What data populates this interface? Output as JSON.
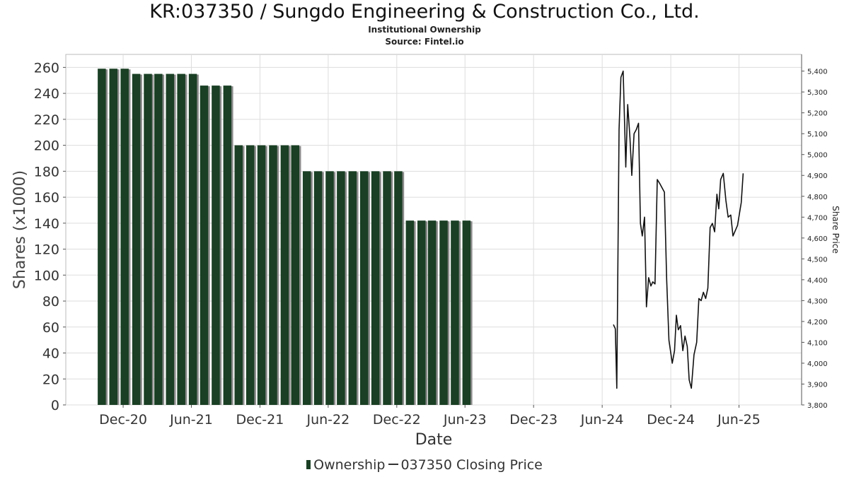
{
  "header": {
    "title": "KR:037350 / Sungdo Engineering & Construction Co., Ltd.",
    "subtitle": "Institutional Ownership",
    "source": "Source: Fintel.io"
  },
  "legend": {
    "ownership_label": "Ownership",
    "price_label": "037350 Closing Price"
  },
  "colors": {
    "bar": "#1a3f24",
    "bar_shadow": "#8a8a8a",
    "line": "#111111",
    "grid": "#dddddd"
  },
  "chart_data": {
    "type": "bar",
    "title": "KR:037350 / Sungdo Engineering & Construction Co., Ltd.",
    "subtitle": "Institutional Ownership",
    "xlabel": "Date",
    "ylabel": "Shares (x1000)",
    "y2label": "Share Price",
    "x_range": [
      "2020-07-01",
      "2025-11-15"
    ],
    "ylim": [
      0,
      270
    ],
    "y2lim": [
      3800,
      5480
    ],
    "y_ticks": [
      0,
      20,
      40,
      60,
      80,
      100,
      120,
      140,
      160,
      180,
      200,
      220,
      240,
      260
    ],
    "y2_ticks": [
      3800,
      3900,
      4000,
      4100,
      4200,
      4300,
      4400,
      4500,
      4600,
      4700,
      4800,
      4900,
      5000,
      5100,
      5200,
      5300,
      5400
    ],
    "y2_tick_labels": [
      "3,800",
      "3,900",
      "4,000",
      "4,100",
      "4,200",
      "4,300",
      "4,400",
      "4,500",
      "4,600",
      "4,700",
      "4,800",
      "4,900",
      "5,000",
      "5,100",
      "5,200",
      "5,300",
      "5,400"
    ],
    "x_ticks": [
      {
        "date": "2020-12-01",
        "label": "Dec-20"
      },
      {
        "date": "2021-06-01",
        "label": "Jun-21"
      },
      {
        "date": "2021-12-01",
        "label": "Dec-21"
      },
      {
        "date": "2022-06-01",
        "label": "Jun-22"
      },
      {
        "date": "2022-12-01",
        "label": "Dec-22"
      },
      {
        "date": "2023-06-01",
        "label": "Jun-23"
      },
      {
        "date": "2023-12-01",
        "label": "Dec-23"
      },
      {
        "date": "2024-06-01",
        "label": "Jun-24"
      },
      {
        "date": "2024-12-01",
        "label": "Dec-24"
      },
      {
        "date": "2025-06-01",
        "label": "Jun-25"
      }
    ],
    "grid": true,
    "legend_position": "bottom",
    "series": [
      {
        "name": "Ownership",
        "type": "bar",
        "axis": "left",
        "points": [
          [
            "2020-10-05",
            259
          ],
          [
            "2020-11-05",
            259
          ],
          [
            "2020-12-05",
            259
          ],
          [
            "2021-01-05",
            255
          ],
          [
            "2021-02-05",
            255
          ],
          [
            "2021-03-05",
            255
          ],
          [
            "2021-04-05",
            255
          ],
          [
            "2021-05-05",
            255
          ],
          [
            "2021-06-05",
            255
          ],
          [
            "2021-07-05",
            246
          ],
          [
            "2021-08-05",
            246
          ],
          [
            "2021-09-05",
            246
          ],
          [
            "2021-10-05",
            200
          ],
          [
            "2021-11-05",
            200
          ],
          [
            "2021-12-05",
            200
          ],
          [
            "2022-01-05",
            200
          ],
          [
            "2022-02-05",
            200
          ],
          [
            "2022-03-05",
            200
          ],
          [
            "2022-04-05",
            180
          ],
          [
            "2022-05-05",
            180
          ],
          [
            "2022-06-05",
            180
          ],
          [
            "2022-07-05",
            180
          ],
          [
            "2022-08-05",
            180
          ],
          [
            "2022-09-05",
            180
          ],
          [
            "2022-10-05",
            180
          ],
          [
            "2022-11-05",
            180
          ],
          [
            "2022-12-05",
            180
          ],
          [
            "2023-01-05",
            142
          ],
          [
            "2023-02-05",
            142
          ],
          [
            "2023-03-05",
            142
          ],
          [
            "2023-04-05",
            142
          ],
          [
            "2023-05-05",
            142
          ],
          [
            "2023-06-05",
            142
          ]
        ]
      },
      {
        "name": "037350 Closing Price",
        "type": "line",
        "axis": "right",
        "points": [
          [
            "2024-07-01",
            4185
          ],
          [
            "2024-07-06",
            4165
          ],
          [
            "2024-07-10",
            3880
          ],
          [
            "2024-07-16",
            5120
          ],
          [
            "2024-07-21",
            5370
          ],
          [
            "2024-07-27",
            5400
          ],
          [
            "2024-08-03",
            4940
          ],
          [
            "2024-08-08",
            5240
          ],
          [
            "2024-08-14",
            5080
          ],
          [
            "2024-08-19",
            4900
          ],
          [
            "2024-08-25",
            5100
          ],
          [
            "2024-08-31",
            5120
          ],
          [
            "2024-09-06",
            5150
          ],
          [
            "2024-09-11",
            4670
          ],
          [
            "2024-09-16",
            4610
          ],
          [
            "2024-09-22",
            4700
          ],
          [
            "2024-09-27",
            4270
          ],
          [
            "2024-10-03",
            4410
          ],
          [
            "2024-10-09",
            4370
          ],
          [
            "2024-10-14",
            4390
          ],
          [
            "2024-10-20",
            4380
          ],
          [
            "2024-10-26",
            4880
          ],
          [
            "2024-11-02",
            4860
          ],
          [
            "2024-11-08",
            4840
          ],
          [
            "2024-11-14",
            4820
          ],
          [
            "2024-11-20",
            4400
          ],
          [
            "2024-11-26",
            4110
          ],
          [
            "2024-12-05",
            4000
          ],
          [
            "2024-12-11",
            4060
          ],
          [
            "2024-12-16",
            4230
          ],
          [
            "2024-12-21",
            4160
          ],
          [
            "2024-12-27",
            4180
          ],
          [
            "2025-01-02",
            4060
          ],
          [
            "2025-01-08",
            4130
          ],
          [
            "2025-01-14",
            4080
          ],
          [
            "2025-01-19",
            3920
          ],
          [
            "2025-01-25",
            3880
          ],
          [
            "2025-02-01",
            4040
          ],
          [
            "2025-02-08",
            4100
          ],
          [
            "2025-02-14",
            4310
          ],
          [
            "2025-02-20",
            4300
          ],
          [
            "2025-02-26",
            4340
          ],
          [
            "2025-03-04",
            4310
          ],
          [
            "2025-03-10",
            4360
          ],
          [
            "2025-03-16",
            4650
          ],
          [
            "2025-03-22",
            4670
          ],
          [
            "2025-03-28",
            4630
          ],
          [
            "2025-04-03",
            4810
          ],
          [
            "2025-04-08",
            4740
          ],
          [
            "2025-04-13",
            4880
          ],
          [
            "2025-04-20",
            4910
          ],
          [
            "2025-04-27",
            4780
          ],
          [
            "2025-05-03",
            4700
          ],
          [
            "2025-05-10",
            4710
          ],
          [
            "2025-05-16",
            4610
          ],
          [
            "2025-05-28",
            4660
          ],
          [
            "2025-06-07",
            4770
          ],
          [
            "2025-06-12",
            4910
          ]
        ]
      }
    ]
  }
}
